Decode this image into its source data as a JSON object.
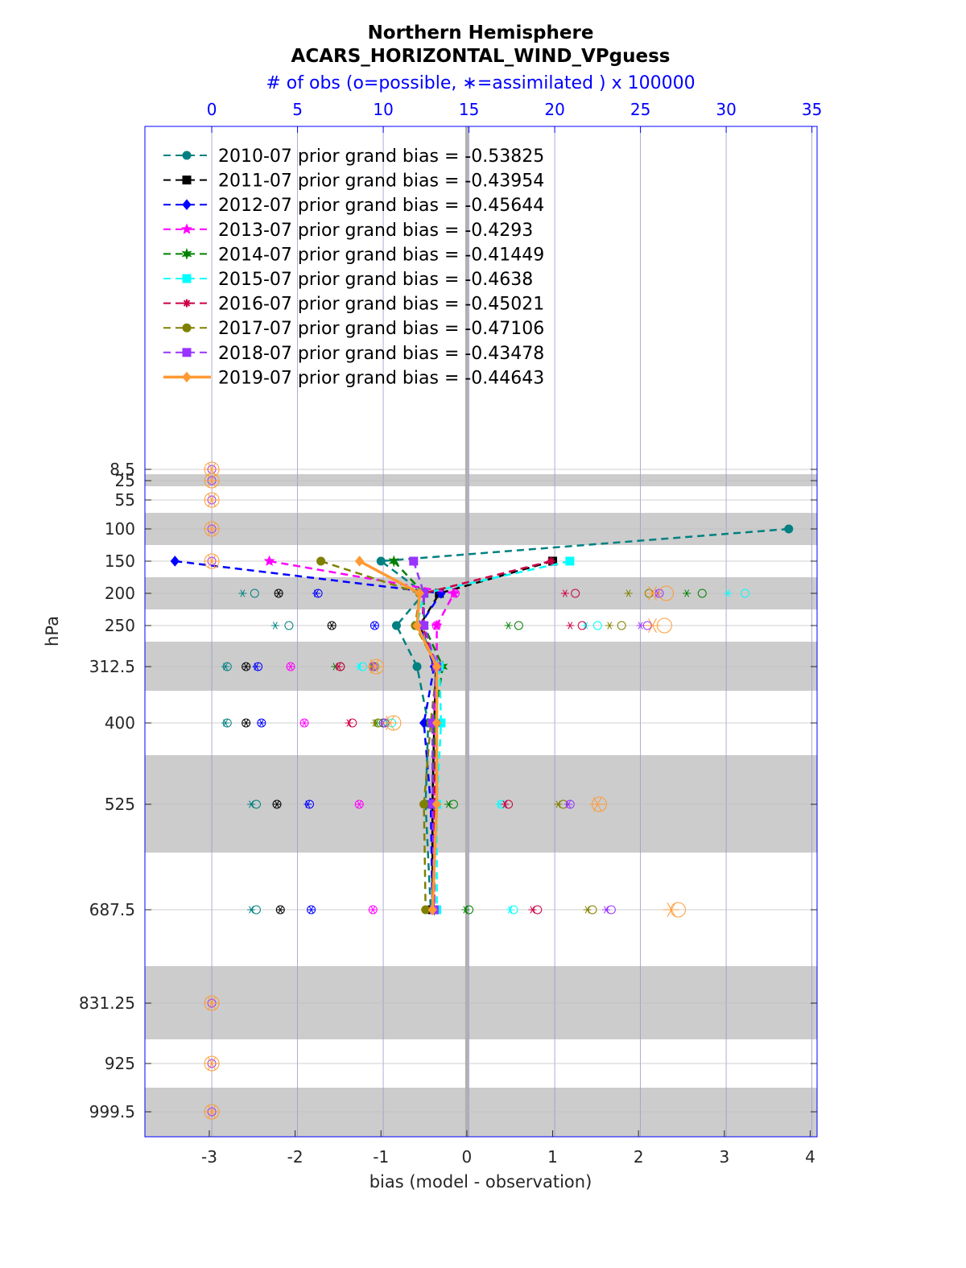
{
  "chart_data": {
    "type": "line",
    "title": "Northern Hemisphere",
    "subtitle": "ACARS_HORIZONTAL_WIND_VPguess",
    "top_axis_label": "# of obs (o=possible, ∗=assimilated ) x 100000",
    "xlabel": "bias (model - observation)",
    "ylabel": "hPa",
    "xlim": [
      -3.75,
      4.08
    ],
    "xticks": [
      "-3",
      "-2",
      "-1",
      "0",
      "1",
      "2",
      "3",
      "4"
    ],
    "top_xlim": [
      -3.9,
      35.3
    ],
    "top_xticks": [
      "0",
      "5",
      "10",
      "15",
      "20",
      "25",
      "30",
      "35"
    ],
    "levels": [
      8.5,
      25,
      55,
      100,
      150,
      200,
      250,
      312.5,
      400,
      525,
      687.5,
      831.25,
      925,
      999.5
    ],
    "ytick_labels": [
      "8.5",
      "25",
      "55",
      "100",
      "150",
      "200",
      "250",
      "312.5",
      "400",
      "525",
      "687.5",
      "831.25",
      "925",
      "999.5"
    ],
    "legend_position": "top-left",
    "series": [
      {
        "name": "2010-07 prior grand bias = -0.53825",
        "color": "#008080",
        "style": "dashed",
        "marker": "circle",
        "levels": [
          100,
          150,
          200,
          250,
          312.5,
          400,
          525,
          687.5
        ],
        "bias": [
          3.75,
          -1.0,
          -0.5,
          -0.82,
          -0.58,
          -0.45,
          -0.48,
          -0.42
        ],
        "possible": [
          null,
          null,
          2.5,
          4.5,
          0.9,
          0.9,
          2.6,
          2.6
        ],
        "assimilated": [
          null,
          null,
          1.8,
          3.7,
          0.8,
          0.8,
          2.3,
          2.3
        ]
      },
      {
        "name": "2011-07 prior grand bias = -0.43954",
        "color": "#000000",
        "style": "dashed",
        "marker": "square",
        "levels": [
          150,
          200,
          250,
          312.5,
          400,
          525,
          687.5
        ],
        "bias": [
          1.0,
          -0.32,
          -0.55,
          -0.36,
          -0.38,
          -0.4,
          -0.4
        ],
        "possible": [
          null,
          3.9,
          7.0,
          2.0,
          2.0,
          3.8,
          4.0
        ],
        "assimilated": [
          null,
          3.9,
          7.0,
          2.0,
          2.0,
          3.8,
          4.0
        ]
      },
      {
        "name": "2012-07 prior grand bias = -0.45644",
        "color": "#0000ff",
        "style": "dashed",
        "marker": "diamond",
        "levels": [
          150,
          200,
          250,
          312.5,
          400,
          525,
          687.5
        ],
        "bias": [
          -3.4,
          -0.3,
          -0.55,
          -0.38,
          -0.5,
          -0.42,
          -0.4
        ],
        "possible": [
          null,
          6.2,
          9.5,
          2.7,
          2.9,
          5.7,
          5.8
        ],
        "assimilated": [
          null,
          6.1,
          9.5,
          2.6,
          2.9,
          5.6,
          5.8
        ]
      },
      {
        "name": "2013-07 prior grand bias = -0.4293",
        "color": "#ff00ff",
        "style": "dashed",
        "marker": "star",
        "levels": [
          150,
          200,
          250,
          312.5,
          400,
          525,
          687.5
        ],
        "bias": [
          -2.3,
          -0.15,
          -0.35,
          -0.35,
          -0.38,
          -0.38,
          -0.38
        ],
        "possible": [
          null,
          14.2,
          13.1,
          4.6,
          5.4,
          8.6,
          9.4
        ],
        "assimilated": [
          null,
          14.2,
          13.1,
          4.6,
          5.4,
          8.6,
          9.4
        ]
      },
      {
        "name": "2014-07 prior grand bias = -0.41449",
        "color": "#008000",
        "style": "dashed",
        "marker": "hexagram",
        "levels": [
          150,
          200,
          250,
          312.5,
          400,
          525,
          687.5
        ],
        "bias": [
          -0.85,
          -0.5,
          -0.5,
          -0.28,
          -0.38,
          -0.38,
          -0.38
        ],
        "possible": [
          null,
          28.6,
          17.9,
          7.5,
          10.0,
          14.1,
          15.0
        ],
        "assimilated": [
          null,
          27.7,
          17.3,
          7.2,
          9.6,
          13.8,
          14.8
        ]
      },
      {
        "name": "2015-07 prior grand bias = -0.4638",
        "color": "#00ffff",
        "style": "dashed",
        "marker": "square",
        "levels": [
          150,
          200,
          250,
          312.5,
          400,
          525,
          687.5
        ],
        "bias": [
          1.2,
          -0.5,
          -0.58,
          -0.32,
          -0.3,
          -0.35,
          -0.35
        ],
        "possible": [
          null,
          31.1,
          22.5,
          8.8,
          10.5,
          16.9,
          17.6
        ],
        "assimilated": [
          null,
          30.1,
          21.8,
          8.6,
          10.2,
          16.8,
          17.4
        ]
      },
      {
        "name": "2016-07 prior grand bias = -0.45021",
        "color": "#cc0044",
        "style": "dashed",
        "marker": "asterisk",
        "levels": [
          150,
          200,
          250,
          312.5,
          400,
          525,
          687.5
        ],
        "bias": [
          0.98,
          -0.5,
          -0.52,
          -0.35,
          -0.35,
          -0.38,
          -0.38
        ],
        "possible": [
          null,
          21.2,
          21.6,
          7.5,
          8.2,
          17.3,
          19.0
        ],
        "assimilated": [
          null,
          20.6,
          20.9,
          7.4,
          8.0,
          17.1,
          18.7
        ]
      },
      {
        "name": "2017-07 prior grand bias = -0.47106",
        "color": "#808000",
        "style": "dashed",
        "marker": "circle",
        "levels": [
          150,
          200,
          250,
          312.5,
          400,
          525,
          687.5
        ],
        "bias": [
          -1.7,
          -0.55,
          -0.6,
          -0.35,
          -0.42,
          -0.5,
          -0.48
        ],
        "possible": [
          null,
          25.5,
          23.9,
          9.5,
          9.7,
          20.5,
          22.2
        ],
        "assimilated": [
          null,
          24.3,
          23.2,
          9.3,
          9.5,
          20.2,
          21.9
        ]
      },
      {
        "name": "2018-07 prior grand bias = -0.43478",
        "color": "#9933ff",
        "style": "dashed",
        "marker": "square",
        "levels": [
          150,
          200,
          250,
          312.5,
          400,
          525,
          687.5
        ],
        "bias": [
          -0.62,
          -0.5,
          -0.5,
          -0.35,
          -0.4,
          -0.4,
          -0.38
        ],
        "possible": [
          null,
          26.1,
          25.4,
          9.4,
          10.1,
          20.9,
          23.3
        ],
        "assimilated": [
          null,
          26.0,
          25.0,
          9.4,
          10.0,
          20.8,
          23.0
        ]
      },
      {
        "name": "2019-07 prior grand bias = -0.44643",
        "color": "#ff9933",
        "style": "solid",
        "marker": "diamond",
        "levels": [
          150,
          200,
          250,
          312.5,
          400,
          525,
          687.5
        ],
        "bias": [
          -1.25,
          -0.55,
          -0.58,
          -0.35,
          -0.35,
          -0.35,
          -0.4
        ],
        "possible": [
          null,
          26.5,
          26.4,
          9.6,
          10.6,
          22.6,
          27.2
        ],
        "assimilated": [
          null,
          25.7,
          25.7,
          9.5,
          10.4,
          22.5,
          26.8
        ]
      }
    ],
    "zero_count_levels": [
      8.5,
      25,
      55,
      100,
      150,
      831.25,
      925,
      999.5
    ]
  }
}
